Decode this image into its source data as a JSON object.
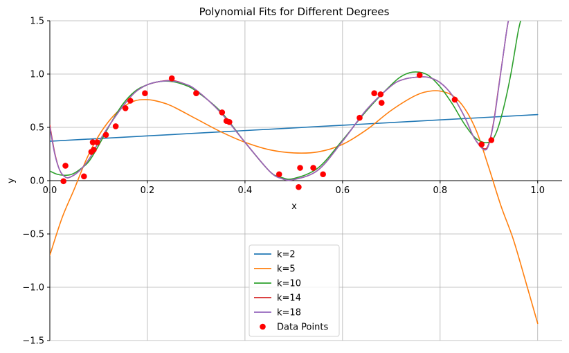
{
  "chart_data": {
    "type": "line",
    "title": "Polynomial Fits for Different Degrees",
    "xlabel": "x",
    "ylabel": "y",
    "xlim": [
      0.0,
      1.05
    ],
    "ylim": [
      -1.5,
      1.5
    ],
    "x_ticks": [
      "0.0",
      "0.2",
      "0.4",
      "0.6",
      "0.8",
      "1.0"
    ],
    "x_tick_values": [
      0.0,
      0.2,
      0.4,
      0.6,
      0.8,
      1.0
    ],
    "y_ticks": [
      "−1.5",
      "−1.0",
      "−0.5",
      "0.0",
      "0.5",
      "1.0",
      "1.5"
    ],
    "y_tick_values": [
      -1.5,
      -1.0,
      -0.5,
      0.0,
      0.5,
      1.0,
      1.5
    ],
    "grid": true,
    "legend_position": "bottom-center",
    "series": [
      {
        "name": "k=2",
        "color": "#1f77b4",
        "x": [
          0.0,
          0.1,
          0.2,
          0.3,
          0.4,
          0.5,
          0.6,
          0.7,
          0.8,
          0.9,
          1.0
        ],
        "y": [
          0.37,
          0.395,
          0.42,
          0.445,
          0.47,
          0.495,
          0.52,
          0.545,
          0.57,
          0.595,
          0.62
        ]
      },
      {
        "name": "k=5",
        "color": "#ff7f0e",
        "x": [
          0.0,
          0.025,
          0.05,
          0.075,
          0.1,
          0.125,
          0.15,
          0.175,
          0.2,
          0.225,
          0.25,
          0.3,
          0.35,
          0.4,
          0.45,
          0.5,
          0.55,
          0.6,
          0.65,
          0.7,
          0.75,
          0.78,
          0.8,
          0.825,
          0.85,
          0.875,
          0.9,
          0.925,
          0.95,
          0.975,
          1.0
        ],
        "y": [
          -0.7,
          -0.35,
          -0.08,
          0.2,
          0.42,
          0.58,
          0.69,
          0.75,
          0.76,
          0.74,
          0.7,
          0.58,
          0.46,
          0.36,
          0.29,
          0.26,
          0.27,
          0.34,
          0.48,
          0.66,
          0.8,
          0.84,
          0.84,
          0.8,
          0.68,
          0.46,
          0.12,
          -0.24,
          -0.55,
          -0.94,
          -1.34
        ]
      },
      {
        "name": "k=10",
        "color": "#2ca02c",
        "x": [
          0.0,
          0.015,
          0.03,
          0.045,
          0.06,
          0.08,
          0.1,
          0.125,
          0.15,
          0.175,
          0.2,
          0.225,
          0.25,
          0.275,
          0.3,
          0.35,
          0.4,
          0.45,
          0.475,
          0.5,
          0.55,
          0.6,
          0.65,
          0.7,
          0.725,
          0.75,
          0.775,
          0.8,
          0.825,
          0.85,
          0.875,
          0.9,
          0.915,
          0.93,
          0.945,
          0.96,
          0.968
        ],
        "y": [
          0.09,
          0.06,
          0.05,
          0.06,
          0.1,
          0.18,
          0.33,
          0.54,
          0.72,
          0.84,
          0.9,
          0.93,
          0.93,
          0.9,
          0.84,
          0.65,
          0.36,
          0.09,
          0.03,
          0.02,
          0.12,
          0.38,
          0.66,
          0.9,
          0.99,
          1.02,
          0.99,
          0.88,
          0.72,
          0.53,
          0.39,
          0.36,
          0.45,
          0.68,
          1.0,
          1.4,
          1.55
        ]
      },
      {
        "name": "k=14",
        "color": "#d62728",
        "x": [
          0.0,
          0.01,
          0.02,
          0.03,
          0.04,
          0.06,
          0.08,
          0.1,
          0.125,
          0.15,
          0.175,
          0.2,
          0.225,
          0.25,
          0.275,
          0.3,
          0.35,
          0.4,
          0.45,
          0.475,
          0.5,
          0.55,
          0.6,
          0.65,
          0.7,
          0.725,
          0.75,
          0.775,
          0.8,
          0.825,
          0.85,
          0.87,
          0.89,
          0.9,
          0.91,
          0.92,
          0.93,
          0.94,
          0.95
        ],
        "y": [
          0.52,
          0.26,
          0.1,
          0.04,
          0.03,
          0.09,
          0.2,
          0.36,
          0.54,
          0.7,
          0.83,
          0.9,
          0.93,
          0.94,
          0.91,
          0.85,
          0.64,
          0.36,
          0.09,
          0.02,
          0.01,
          0.1,
          0.37,
          0.67,
          0.89,
          0.95,
          0.97,
          0.97,
          0.92,
          0.8,
          0.6,
          0.4,
          0.3,
          0.35,
          0.56,
          0.88,
          1.2,
          1.5,
          1.6
        ]
      },
      {
        "name": "k=18",
        "color": "#9467bd",
        "x": [
          0.0,
          0.01,
          0.02,
          0.03,
          0.04,
          0.06,
          0.08,
          0.1,
          0.125,
          0.15,
          0.175,
          0.2,
          0.225,
          0.25,
          0.275,
          0.3,
          0.35,
          0.4,
          0.45,
          0.475,
          0.5,
          0.55,
          0.6,
          0.65,
          0.7,
          0.725,
          0.75,
          0.775,
          0.8,
          0.825,
          0.85,
          0.87,
          0.89,
          0.9,
          0.91,
          0.92,
          0.93,
          0.94,
          0.95
        ],
        "y": [
          0.5,
          0.25,
          0.1,
          0.04,
          0.03,
          0.09,
          0.2,
          0.36,
          0.54,
          0.7,
          0.83,
          0.9,
          0.93,
          0.935,
          0.91,
          0.85,
          0.64,
          0.36,
          0.09,
          0.02,
          0.01,
          0.1,
          0.37,
          0.67,
          0.89,
          0.95,
          0.97,
          0.97,
          0.92,
          0.8,
          0.6,
          0.4,
          0.29,
          0.34,
          0.55,
          0.87,
          1.2,
          1.5,
          1.6
        ]
      }
    ],
    "points": {
      "name": "Data Points",
      "color": "#ff0000",
      "x": [
        0.028,
        0.032,
        0.07,
        0.085,
        0.088,
        0.09,
        0.097,
        0.115,
        0.135,
        0.155,
        0.165,
        0.195,
        0.25,
        0.3,
        0.353,
        0.362,
        0.368,
        0.47,
        0.51,
        0.513,
        0.54,
        0.56,
        0.635,
        0.665,
        0.678,
        0.68,
        0.758,
        0.83,
        0.885,
        0.905
      ],
      "y": [
        -0.005,
        0.14,
        0.04,
        0.27,
        0.36,
        0.29,
        0.36,
        0.43,
        0.51,
        0.68,
        0.75,
        0.82,
        0.96,
        0.82,
        0.64,
        0.56,
        0.55,
        0.06,
        -0.06,
        0.12,
        0.12,
        0.06,
        0.59,
        0.82,
        0.81,
        0.73,
        0.99,
        0.76,
        0.34,
        0.38
      ]
    }
  }
}
